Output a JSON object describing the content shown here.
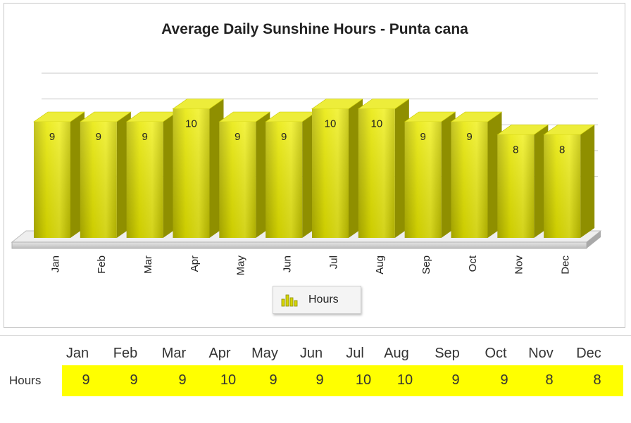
{
  "chart_data": {
    "type": "bar",
    "title": "Average Daily Sunshine Hours - Punta cana",
    "categories": [
      "Jan",
      "Feb",
      "Mar",
      "Apr",
      "May",
      "Jun",
      "Jul",
      "Aug",
      "Sep",
      "Oct",
      "Nov",
      "Dec"
    ],
    "series": [
      {
        "name": "Hours",
        "values": [
          9,
          9,
          9,
          10,
          9,
          9,
          10,
          10,
          9,
          9,
          8,
          8
        ]
      }
    ],
    "xlabel": "",
    "ylabel": "",
    "ylim": [
      0,
      12
    ],
    "grid": true,
    "legend_position": "bottom-center",
    "bar_style": "3d",
    "colors": {
      "bar": "#e3e300",
      "bar_top": "#f2f24a",
      "bar_side": "#9a9a00",
      "table_highlight": "#ffff00"
    }
  },
  "table": {
    "row_label": "Hours",
    "months": [
      "Jan",
      "Feb",
      "Mar",
      "Apr",
      "May",
      "Jun",
      "Jul",
      "Aug",
      "Sep",
      "Oct",
      "Nov",
      "Dec"
    ],
    "values": [
      "9",
      "9",
      "9",
      "10",
      "9",
      "9",
      "10",
      "10",
      "9",
      "9",
      "8",
      "8"
    ]
  }
}
